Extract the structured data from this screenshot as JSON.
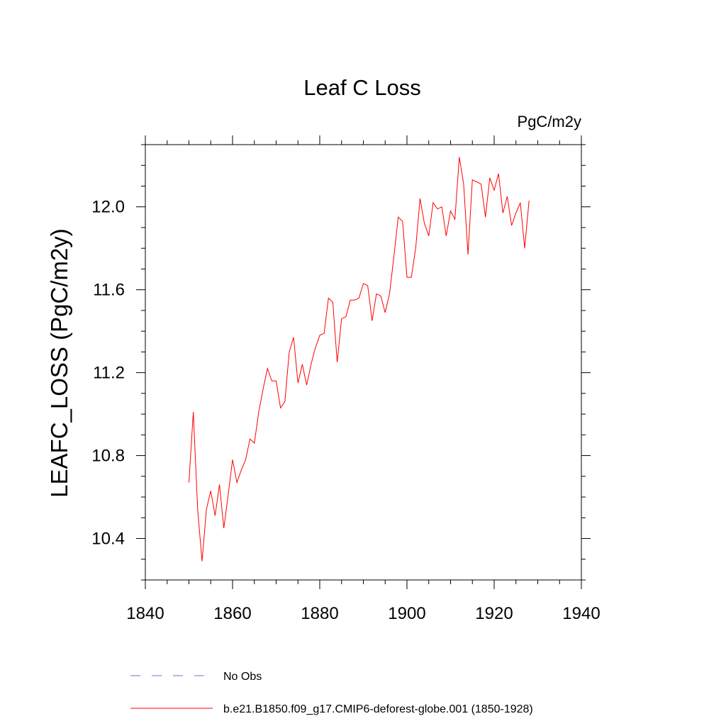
{
  "chart_data": {
    "type": "line",
    "title": "Leaf C Loss",
    "units_label": "PgC/m2y",
    "xlabel": "",
    "ylabel": "LEAFC_LOSS  (PgC/m2y)",
    "xlim": [
      1840,
      1940
    ],
    "ylim": [
      10.2,
      12.3
    ],
    "x_ticks": [
      1840,
      1860,
      1880,
      1900,
      1920,
      1940
    ],
    "x_tick_labels": [
      "1840",
      "1860",
      "1880",
      "1900",
      "1920",
      "1940"
    ],
    "x_minor_step": 5,
    "y_ticks": [
      10.4,
      10.8,
      11.2,
      11.6,
      12.0
    ],
    "y_tick_labels": [
      "10.4",
      "10.8",
      "11.2",
      "11.6",
      "12.0"
    ],
    "y_minor_step": 0.1,
    "grid": false,
    "legend_position": "bottom-left",
    "series": [
      {
        "name": "No Obs",
        "color": "#7b6fc4",
        "dash": "dashed",
        "x": [],
        "values": []
      },
      {
        "name": "b.e21.B1850.f09_g17.CMIP6-deforest-globe.001 (1850-1928)",
        "color": "#ff0000",
        "dash": "solid",
        "x": [
          1850,
          1851,
          1852,
          1853,
          1854,
          1855,
          1856,
          1857,
          1858,
          1859,
          1860,
          1861,
          1862,
          1863,
          1864,
          1865,
          1866,
          1867,
          1868,
          1869,
          1870,
          1871,
          1872,
          1873,
          1874,
          1875,
          1876,
          1877,
          1878,
          1879,
          1880,
          1881,
          1882,
          1883,
          1884,
          1885,
          1886,
          1887,
          1888,
          1889,
          1890,
          1891,
          1892,
          1893,
          1894,
          1895,
          1896,
          1897,
          1898,
          1899,
          1900,
          1901,
          1902,
          1903,
          1904,
          1905,
          1906,
          1907,
          1908,
          1909,
          1910,
          1911,
          1912,
          1913,
          1914,
          1915,
          1916,
          1917,
          1918,
          1919,
          1920,
          1921,
          1922,
          1923,
          1924,
          1925,
          1926,
          1927,
          1928
        ],
        "values": [
          10.67,
          11.01,
          10.54,
          10.29,
          10.54,
          10.63,
          10.51,
          10.66,
          10.45,
          10.61,
          10.78,
          10.67,
          10.73,
          10.78,
          10.88,
          10.86,
          11.01,
          11.12,
          11.22,
          11.16,
          11.16,
          11.03,
          11.06,
          11.3,
          11.37,
          11.15,
          11.24,
          11.14,
          11.24,
          11.32,
          11.38,
          11.39,
          11.56,
          11.54,
          11.25,
          11.46,
          11.47,
          11.55,
          11.55,
          11.56,
          11.63,
          11.62,
          11.45,
          11.58,
          11.57,
          11.49,
          11.58,
          11.76,
          11.95,
          11.93,
          11.66,
          11.66,
          11.8,
          12.04,
          11.92,
          11.86,
          12.02,
          11.99,
          12.0,
          11.86,
          11.98,
          11.94,
          12.24,
          12.11,
          11.77,
          12.13,
          12.12,
          12.11,
          11.95,
          12.14,
          12.08,
          12.16,
          11.97,
          12.05,
          11.91,
          11.97,
          12.02,
          11.8,
          12.03
        ]
      }
    ]
  }
}
